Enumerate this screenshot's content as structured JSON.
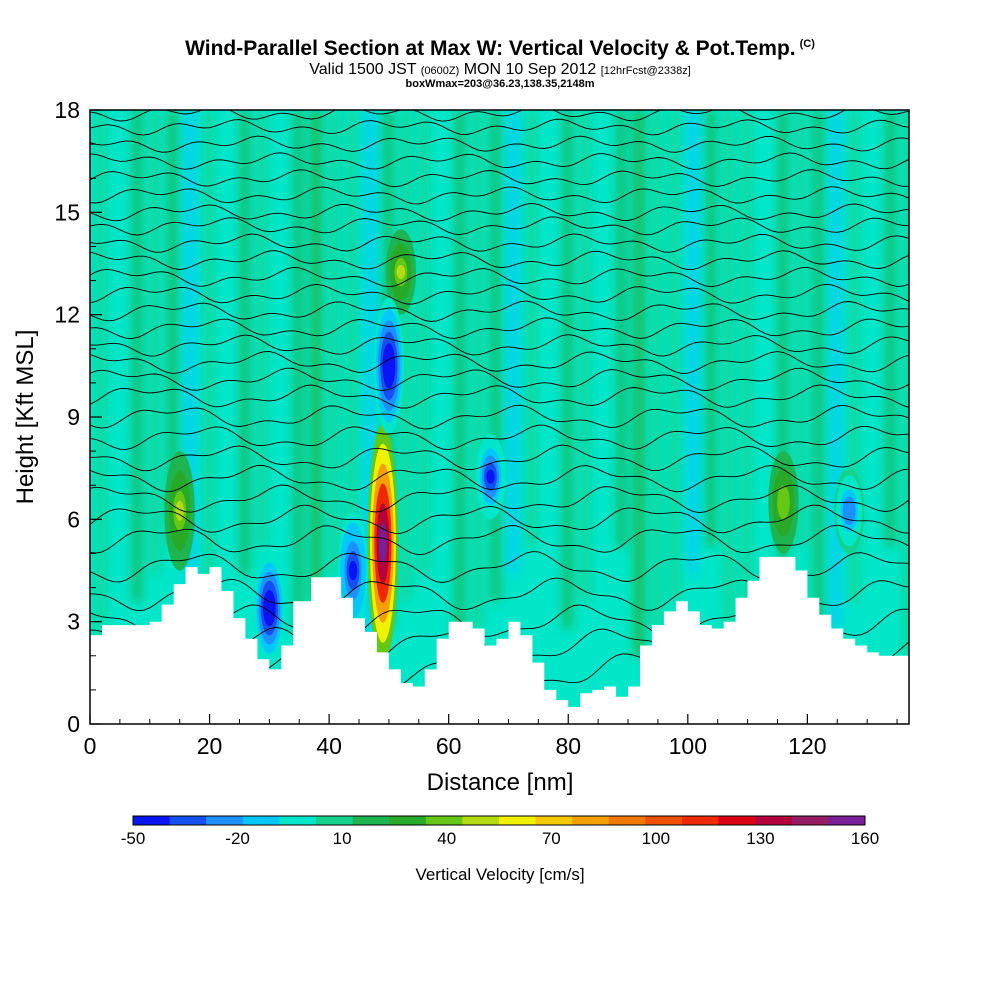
{
  "header": {
    "title": "Wind-Parallel Section at Max W: Vertical Velocity & Pot.Temp.",
    "copyright": "(C)",
    "subtitle_main_1": "Valid 1500 JST",
    "subtitle_small_1": "(0600Z)",
    "subtitle_main_2": "MON 10 Sep 2012",
    "subtitle_small_2": "[12hrFcst@2338z]",
    "boxline": "boxWmax=203@36.23,138.35,2148m"
  },
  "chart_data": {
    "type": "heatmap",
    "title": "Wind-Parallel Section at Max W: Vertical Velocity & Pot.Temp.",
    "xlabel": "Distance [nm]",
    "ylabel": "Height [Kft MSL]",
    "xlim": [
      0,
      137
    ],
    "ylim": [
      0,
      18
    ],
    "xticks": [
      0,
      20,
      40,
      60,
      80,
      100,
      120
    ],
    "yticks": [
      0,
      3,
      6,
      9,
      12,
      15,
      18
    ],
    "colorbar": {
      "title": "Vertical Velocity [cm/s]",
      "tick_labels": [
        "-50",
        "-20",
        "10",
        "40",
        "70",
        "100",
        "130",
        "160"
      ],
      "tick_values": [
        -50,
        -20,
        10,
        40,
        70,
        100,
        130,
        160
      ],
      "colors": [
        "#0a14f5",
        "#1450f0",
        "#1e90ff",
        "#00c8ff",
        "#00e6c8",
        "#14d28c",
        "#1eb450",
        "#28aa28",
        "#64c814",
        "#b4dc14",
        "#f0f000",
        "#f5c800",
        "#f5a000",
        "#f07800",
        "#f05000",
        "#f02800",
        "#dc0014",
        "#b4003c",
        "#961e64",
        "#781e96"
      ]
    },
    "terrain_kft": [
      [
        0,
        2.6
      ],
      [
        2,
        2.9
      ],
      [
        7,
        2.9
      ],
      [
        10,
        3.0
      ],
      [
        12,
        3.5
      ],
      [
        14,
        4.1
      ],
      [
        16,
        4.6
      ],
      [
        18,
        4.4
      ],
      [
        20,
        4.6
      ],
      [
        22,
        3.9
      ],
      [
        24,
        3.1
      ],
      [
        26,
        2.5
      ],
      [
        28,
        1.9
      ],
      [
        30,
        1.6
      ],
      [
        32,
        2.3
      ],
      [
        34,
        3.6
      ],
      [
        37,
        4.3
      ],
      [
        40,
        4.3
      ],
      [
        42,
        3.7
      ],
      [
        44,
        3.1
      ],
      [
        46,
        2.7
      ],
      [
        48,
        2.1
      ],
      [
        50,
        1.6
      ],
      [
        52,
        1.2
      ],
      [
        54,
        1.1
      ],
      [
        56,
        1.6
      ],
      [
        58,
        2.5
      ],
      [
        60,
        3.0
      ],
      [
        62,
        3.0
      ],
      [
        64,
        2.8
      ],
      [
        66,
        2.3
      ],
      [
        68,
        2.5
      ],
      [
        70,
        3.0
      ],
      [
        72,
        2.6
      ],
      [
        74,
        1.8
      ],
      [
        76,
        1.0
      ],
      [
        78,
        0.7
      ],
      [
        80,
        0.5
      ],
      [
        82,
        0.9
      ],
      [
        84,
        1.0
      ],
      [
        86,
        1.1
      ],
      [
        88,
        0.8
      ],
      [
        90,
        1.1
      ],
      [
        92,
        2.3
      ],
      [
        94,
        2.9
      ],
      [
        96,
        3.3
      ],
      [
        98,
        3.6
      ],
      [
        100,
        3.3
      ],
      [
        102,
        2.9
      ],
      [
        104,
        2.8
      ],
      [
        106,
        3.0
      ],
      [
        108,
        3.7
      ],
      [
        110,
        4.2
      ],
      [
        112,
        4.9
      ],
      [
        114,
        4.9
      ],
      [
        116,
        4.9
      ],
      [
        118,
        4.5
      ],
      [
        120,
        3.7
      ],
      [
        122,
        3.2
      ],
      [
        124,
        2.8
      ],
      [
        126,
        2.5
      ],
      [
        128,
        2.3
      ],
      [
        130,
        2.1
      ],
      [
        132,
        2.0
      ],
      [
        137,
        2.0
      ]
    ],
    "updraft_features": [
      {
        "x": 49,
        "y": [
          1.8,
          8.8
        ],
        "w_max": 160
      },
      {
        "x": 15,
        "y": [
          4.5,
          8.0
        ],
        "w_max": 45
      },
      {
        "x": 52,
        "y": [
          12.0,
          14.5
        ],
        "w_max": 45
      },
      {
        "x": 116,
        "y": [
          5.0,
          8.0
        ],
        "w_max": 40
      }
    ],
    "downdraft_features": [
      {
        "x": 30,
        "y": [
          1.8,
          5.0
        ],
        "w_min": -50
      },
      {
        "x": 44,
        "y": [
          2.8,
          6.2
        ],
        "w_min": -45
      },
      {
        "x": 50,
        "y": [
          8.5,
          12.5
        ],
        "w_min": -50
      },
      {
        "x": 67,
        "y": [
          6.0,
          8.5
        ],
        "w_min": -40
      },
      {
        "x": 127,
        "y": [
          5.0,
          7.5
        ],
        "w_min": -25
      }
    ],
    "isentrope_heights_kft": [
      1.6,
      2.3,
      3.0,
      3.8,
      4.6,
      5.4,
      6.0,
      6.6,
      7.2,
      7.8,
      8.4,
      9.0,
      9.6,
      10.1,
      10.6,
      11.1,
      11.6,
      12.1,
      12.6,
      13.1,
      13.6,
      14.1,
      14.6,
      15.0,
      15.5,
      16.0,
      16.5,
      17.0,
      17.5,
      17.9
    ]
  }
}
